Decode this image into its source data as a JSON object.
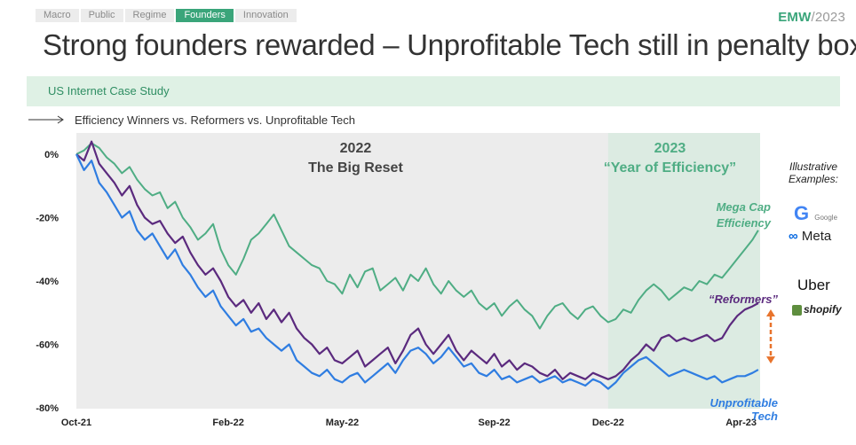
{
  "nav": {
    "tabs": [
      "Macro",
      "Public",
      "Regime",
      "Founders",
      "Innovation"
    ],
    "active": "Founders"
  },
  "brand": {
    "name": "EMW",
    "year": "/2023"
  },
  "title": "Strong founders rewarded – Unprofitable Tech still in penalty box",
  "banner": "US Internet Case Study",
  "subtitle": "Efficiency Winners vs. Reformers vs. Unprofitable Tech",
  "colors": {
    "green": "#4fad84",
    "purple": "#5b2a7e",
    "blue": "#2f7de1",
    "arrow": "#e8732c",
    "shade": "#dcebe2",
    "panel": "#ececec"
  },
  "illustrative": {
    "title": "Illustrative Examples:",
    "logos": [
      {
        "icon": "google-logo",
        "text": "Google"
      },
      {
        "icon": "meta-logo",
        "text": "Meta"
      },
      {
        "icon": "uber-logo",
        "text": "Uber"
      },
      {
        "icon": "shopify-logo",
        "text": "shopify"
      }
    ]
  },
  "chart_data": {
    "type": "line",
    "title": "Efficiency Winners vs. Reformers vs. Unprofitable Tech",
    "xlabel": "",
    "ylabel": "",
    "ylim": [
      -80,
      0
    ],
    "xlim": [
      0,
      18
    ],
    "yticks": [
      0,
      -20,
      -40,
      -60,
      -80
    ],
    "ytick_labels": [
      "0%",
      "-20%",
      "-40%",
      "-60%",
      "-80%"
    ],
    "x_ticks": [
      {
        "label": "Oct-21",
        "x": 0
      },
      {
        "label": "Feb-22",
        "x": 4
      },
      {
        "label": "May-22",
        "x": 7
      },
      {
        "label": "Sep-22",
        "x": 11
      },
      {
        "label": "Dec-22",
        "x": 14
      },
      {
        "label": "Apr-23",
        "x": 17.5
      }
    ],
    "regions": [
      {
        "label": "2022",
        "sublabel": "The Big Reset",
        "x_start": 0,
        "x_end": 14
      },
      {
        "label": "2023",
        "sublabel": "“Year of Efficiency”",
        "x_start": 14,
        "x_end": 18
      }
    ],
    "series": [
      {
        "name": "Mega Cap Efficiency",
        "label": [
          "Mega Cap",
          "Efficiency"
        ],
        "color": "#4fad84",
        "x": [
          0,
          0.2,
          0.4,
          0.6,
          0.8,
          1,
          1.2,
          1.4,
          1.6,
          1.8,
          2,
          2.2,
          2.4,
          2.6,
          2.8,
          3,
          3.2,
          3.4,
          3.6,
          3.8,
          4,
          4.2,
          4.4,
          4.6,
          4.8,
          5,
          5.2,
          5.4,
          5.6,
          5.8,
          6,
          6.2,
          6.4,
          6.6,
          6.8,
          7,
          7.2,
          7.4,
          7.6,
          7.8,
          8,
          8.2,
          8.4,
          8.6,
          8.8,
          9,
          9.2,
          9.4,
          9.6,
          9.8,
          10,
          10.2,
          10.4,
          10.6,
          10.8,
          11,
          11.2,
          11.4,
          11.6,
          11.8,
          12,
          12.2,
          12.4,
          12.6,
          12.8,
          13,
          13.2,
          13.4,
          13.6,
          13.8,
          14,
          14.2,
          14.4,
          14.6,
          14.8,
          15,
          15.2,
          15.4,
          15.6,
          15.8,
          16,
          16.2,
          16.4,
          16.6,
          16.8,
          17,
          17.2,
          17.4,
          17.6,
          17.8,
          17.95
        ],
        "y": [
          0,
          1.2,
          3.5,
          2,
          -1,
          -3,
          -6,
          -4,
          -8,
          -11,
          -13,
          -12,
          -17,
          -15,
          -20,
          -23,
          -27,
          -25,
          -22,
          -30,
          -35,
          -38,
          -33,
          -27,
          -25,
          -22,
          -19,
          -24,
          -29,
          -31,
          -33,
          -35,
          -36,
          -40,
          -41,
          -44,
          -38,
          -42,
          -37,
          -36,
          -43,
          -41,
          -39,
          -43,
          -38,
          -40,
          -36,
          -41,
          -44,
          -40,
          -43,
          -45,
          -43,
          -47,
          -49,
          -47,
          -51,
          -48,
          -46,
          -49,
          -51,
          -55,
          -51,
          -48,
          -47,
          -50,
          -52,
          -49,
          -48,
          -51,
          -53,
          -52,
          -49,
          -50,
          -46,
          -43,
          -41,
          -43,
          -46,
          -44,
          -42,
          -43,
          -40,
          -41,
          -38,
          -39,
          -36,
          -33,
          -30,
          -27,
          -24
        ]
      },
      {
        "name": "Reformers",
        "label": [
          "“Reformers”"
        ],
        "color": "#5b2a7e",
        "x": [
          0,
          0.2,
          0.4,
          0.6,
          0.8,
          1,
          1.2,
          1.4,
          1.6,
          1.8,
          2,
          2.2,
          2.4,
          2.6,
          2.8,
          3,
          3.2,
          3.4,
          3.6,
          3.8,
          4,
          4.2,
          4.4,
          4.6,
          4.8,
          5,
          5.2,
          5.4,
          5.6,
          5.8,
          6,
          6.2,
          6.4,
          6.6,
          6.8,
          7,
          7.2,
          7.4,
          7.6,
          7.8,
          8,
          8.2,
          8.4,
          8.6,
          8.8,
          9,
          9.2,
          9.4,
          9.6,
          9.8,
          10,
          10.2,
          10.4,
          10.6,
          10.8,
          11,
          11.2,
          11.4,
          11.6,
          11.8,
          12,
          12.2,
          12.4,
          12.6,
          12.8,
          13,
          13.2,
          13.4,
          13.6,
          13.8,
          14,
          14.2,
          14.4,
          14.6,
          14.8,
          15,
          15.2,
          15.4,
          15.6,
          15.8,
          16,
          16.2,
          16.4,
          16.6,
          16.8,
          17,
          17.2,
          17.4,
          17.6,
          17.8,
          17.95
        ],
        "y": [
          0,
          -2,
          4,
          -3,
          -6,
          -9,
          -13,
          -10,
          -16,
          -20,
          -22,
          -21,
          -25,
          -28,
          -26,
          -31,
          -35,
          -38,
          -36,
          -40,
          -45,
          -48,
          -46,
          -50,
          -47,
          -52,
          -49,
          -53,
          -50,
          -55,
          -58,
          -60,
          -63,
          -61,
          -65,
          -66,
          -64,
          -62,
          -67,
          -65,
          -63,
          -61,
          -66,
          -62,
          -57,
          -55,
          -60,
          -63,
          -60,
          -57,
          -62,
          -65,
          -62,
          -64,
          -66,
          -63,
          -67,
          -65,
          -68,
          -66,
          -67,
          -69,
          -70,
          -68,
          -71,
          -69,
          -70,
          -71,
          -69,
          -70,
          -71,
          -70,
          -68,
          -65,
          -63,
          -60,
          -62,
          -58,
          -57,
          -59,
          -58,
          -59,
          -58,
          -57,
          -59,
          -58,
          -54,
          -51,
          -49,
          -48,
          -47
        ]
      },
      {
        "name": "Unprofitable Tech",
        "label": [
          "Unprofitable",
          "Tech"
        ],
        "color": "#2f7de1",
        "x": [
          0,
          0.2,
          0.4,
          0.6,
          0.8,
          1,
          1.2,
          1.4,
          1.6,
          1.8,
          2,
          2.2,
          2.4,
          2.6,
          2.8,
          3,
          3.2,
          3.4,
          3.6,
          3.8,
          4,
          4.2,
          4.4,
          4.6,
          4.8,
          5,
          5.2,
          5.4,
          5.6,
          5.8,
          6,
          6.2,
          6.4,
          6.6,
          6.8,
          7,
          7.2,
          7.4,
          7.6,
          7.8,
          8,
          8.2,
          8.4,
          8.6,
          8.8,
          9,
          9.2,
          9.4,
          9.6,
          9.8,
          10,
          10.2,
          10.4,
          10.6,
          10.8,
          11,
          11.2,
          11.4,
          11.6,
          11.8,
          12,
          12.2,
          12.4,
          12.6,
          12.8,
          13,
          13.2,
          13.4,
          13.6,
          13.8,
          14,
          14.2,
          14.4,
          14.6,
          14.8,
          15,
          15.2,
          15.4,
          15.6,
          15.8,
          16,
          16.2,
          16.4,
          16.6,
          16.8,
          17,
          17.2,
          17.4,
          17.6,
          17.8,
          17.95
        ],
        "y": [
          0,
          -5,
          -2,
          -9,
          -12,
          -16,
          -20,
          -18,
          -24,
          -27,
          -25,
          -29,
          -33,
          -30,
          -35,
          -38,
          -42,
          -45,
          -43,
          -48,
          -51,
          -54,
          -52,
          -56,
          -55,
          -58,
          -60,
          -62,
          -60,
          -65,
          -67,
          -69,
          -70,
          -68,
          -71,
          -72,
          -70,
          -69,
          -72,
          -70,
          -68,
          -66,
          -69,
          -65,
          -62,
          -61,
          -63,
          -66,
          -64,
          -61,
          -64,
          -67,
          -66,
          -69,
          -70,
          -68,
          -71,
          -70,
          -72,
          -71,
          -70,
          -72,
          -71,
          -70,
          -72,
          -71,
          -72,
          -73,
          -71,
          -72,
          -74,
          -72,
          -69,
          -67,
          -65,
          -64,
          -66,
          -68,
          -70,
          -69,
          -68,
          -69,
          -70,
          -71,
          -70,
          -72,
          -71,
          -70,
          -70,
          -69,
          -68
        ]
      }
    ]
  }
}
